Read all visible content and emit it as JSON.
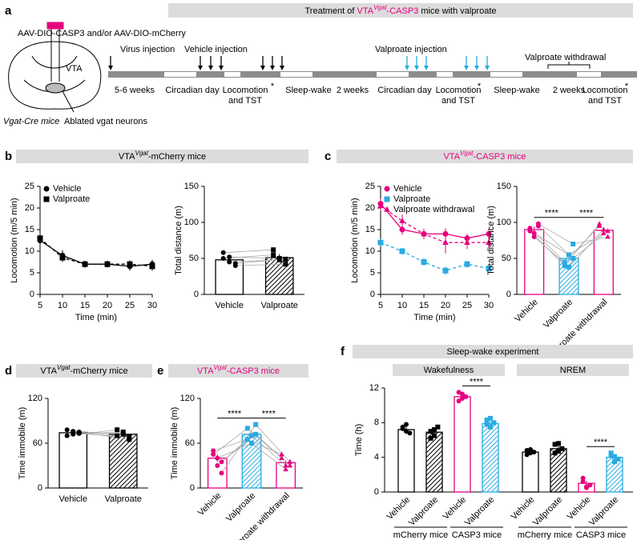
{
  "panel_a": {
    "label": "a",
    "title": {
      "lead": "Treatment of ",
      "prefix": "VTA",
      "sup": "Vgat",
      "suffix": "-CASP3",
      "tail": " mice with valproate",
      "color": "#e6007e"
    },
    "virus": "AAV-DIO-CASP3 and/or AAV-DIO-mCherry",
    "region": "VTA",
    "mouse": "Vgat-Cre mice",
    "ablated": "Ablated vgat neurons",
    "injections": [
      "Virus injection",
      "Vehicle injection",
      "Valproate injection",
      "Valproate withdrawal"
    ],
    "timeline": [
      [
        "5-6 weeks"
      ],
      [
        "Circadian day"
      ],
      [
        "Locomotion",
        "and TST"
      ],
      [
        "Sleep-wake"
      ],
      [
        "2 weeks"
      ],
      [
        "Circadian day"
      ],
      [
        "Locomotion",
        "and TST"
      ],
      [
        "Sleep-wake"
      ],
      [
        "2 weeks"
      ],
      [
        "Locomotion",
        "and TST"
      ]
    ],
    "asterisk": "*"
  },
  "chart_data": [
    {
      "type": "line",
      "panel": "b",
      "title": {
        "prefix": "VTA",
        "sup": "Vgat",
        "suffix": "-mCherry mice"
      },
      "x": [
        5,
        10,
        15,
        20,
        25,
        30
      ],
      "xlim": [
        5,
        30
      ],
      "xticks": [
        5,
        10,
        15,
        20,
        25,
        30
      ],
      "xlabel": "Time (min)",
      "ylim": [
        0,
        25
      ],
      "yticks": [
        0,
        5,
        10,
        15,
        20,
        25
      ],
      "ylabel": "Locomotion (m/5 min)",
      "legend": "upper left",
      "series": [
        {
          "name": "Vehicle",
          "color": "#000000",
          "marker": "circle",
          "dashed": false,
          "values": [
            12.5,
            9,
            7,
            7,
            6.5,
            7
          ],
          "errors": [
            1,
            1.2,
            0.8,
            0.8,
            1,
            1
          ]
        },
        {
          "name": "Valproate",
          "color": "#000000",
          "marker": "square",
          "dashed": true,
          "values": [
            13,
            8.5,
            7,
            7,
            7,
            6.5
          ],
          "errors": [
            1,
            1,
            0.8,
            0.8,
            0.9,
            1
          ]
        }
      ]
    },
    {
      "type": "bar",
      "categories": [
        "Vehicle",
        "Valproate"
      ],
      "values": [
        48,
        51
      ],
      "errors": [
        5,
        5
      ],
      "points": [
        [
          58,
          45,
          40,
          50,
          52,
          43
        ],
        [
          62,
          48,
          42,
          55,
          50,
          49
        ]
      ],
      "colors": [
        "#000000",
        "#000000"
      ],
      "hatch": [
        false,
        true
      ],
      "markers": [
        "circle",
        "square"
      ],
      "paired": true,
      "rotate_labels": false,
      "ylim": [
        0,
        150
      ],
      "yticks": [
        0,
        50,
        100,
        150
      ],
      "ylabel": "Total distance (m)"
    },
    {
      "type": "line",
      "panel": "c",
      "title": {
        "prefix": "VTA",
        "sup": "Vgat",
        "suffix": "-CASP3 mice",
        "color": "#e6007e"
      },
      "x": [
        5,
        10,
        15,
        20,
        25,
        30
      ],
      "xlim": [
        5,
        30
      ],
      "xticks": [
        5,
        10,
        15,
        20,
        25,
        30
      ],
      "xlabel": "Time (min)",
      "ylim": [
        0,
        25
      ],
      "yticks": [
        0,
        5,
        10,
        15,
        20,
        25
      ],
      "ylabel": "Locomotion (m/5 min)",
      "legend": "upper left",
      "series": [
        {
          "name": "Vehicle",
          "color": "#e6007e",
          "marker": "circle",
          "dashed": false,
          "values": [
            21,
            15,
            14,
            14,
            13,
            14
          ],
          "errors": [
            1.2,
            1.2,
            1,
            1.3,
            1,
            1.2
          ]
        },
        {
          "name": "Valproate",
          "color": "#29abe2",
          "marker": "square",
          "dashed": true,
          "values": [
            12,
            10,
            7.5,
            5.5,
            7,
            6
          ],
          "errors": [
            0.8,
            0.8,
            0.9,
            1,
            0.8,
            0.6
          ]
        },
        {
          "name": "Valproate withdrawal",
          "color": "#e6007e",
          "marker": "triangle",
          "dashed": true,
          "values": [
            20.5,
            17,
            14,
            12,
            12,
            12
          ],
          "errors": [
            1.2,
            1.5,
            1.2,
            2.5,
            1.5,
            1.5
          ]
        }
      ]
    },
    {
      "type": "bar",
      "categories": [
        "Vehicle",
        "Valproate",
        "Valproate withdrawal"
      ],
      "values": [
        90,
        50,
        89
      ],
      "errors": [
        4,
        5,
        4
      ],
      "points": [
        [
          92,
          85,
          98,
          88,
          80,
          95
        ],
        [
          45,
          55,
          70,
          40,
          38,
          50
        ],
        [
          95,
          85,
          80,
          98,
          90,
          88
        ]
      ],
      "colors": [
        "#e6007e",
        "#29abe2",
        "#e6007e"
      ],
      "hatch": [
        false,
        true,
        false
      ],
      "markers": [
        "circle",
        "square",
        "triangle"
      ],
      "paired": true,
      "rotate_labels": true,
      "significance": [
        "****",
        "****"
      ],
      "ylim": [
        0,
        150
      ],
      "yticks": [
        0,
        50,
        100,
        150
      ],
      "ylabel": "Total distance (m)"
    },
    {
      "type": "bar",
      "panel": "d",
      "title": {
        "prefix": "VTA",
        "sup": "Vgat",
        "suffix": "-mCherry mice"
      },
      "categories": [
        "Vehicle",
        "Valproate"
      ],
      "values": [
        74,
        72
      ],
      "errors": [
        2,
        3
      ],
      "points": [
        [
          78,
          72,
          75,
          70,
          76,
          73
        ],
        [
          70,
          75,
          65,
          78,
          72,
          68
        ]
      ],
      "colors": [
        "#000000",
        "#000000"
      ],
      "hatch": [
        false,
        true
      ],
      "markers": [
        "circle",
        "square"
      ],
      "paired": true,
      "rotate_labels": false,
      "ylim": [
        0,
        120
      ],
      "yticks": [
        0,
        60,
        120
      ],
      "ylabel": "Time immobile (m)"
    },
    {
      "type": "bar",
      "panel": "e",
      "title": {
        "prefix": "VTA",
        "sup": "Vgat",
        "suffix": "-CASP3 mice",
        "color": "#e6007e"
      },
      "categories": [
        "Vehicle",
        "Valproate",
        "Valproate withdrawal"
      ],
      "values": [
        40,
        72,
        34
      ],
      "errors": [
        5,
        4,
        3
      ],
      "points": [
        [
          45,
          30,
          20,
          50,
          40,
          35
        ],
        [
          80,
          70,
          85,
          65,
          60,
          72
        ],
        [
          40,
          30,
          35,
          45,
          25,
          30
        ]
      ],
      "colors": [
        "#e6007e",
        "#29abe2",
        "#e6007e"
      ],
      "hatch": [
        false,
        true,
        false
      ],
      "markers": [
        "circle",
        "square",
        "triangle"
      ],
      "paired": true,
      "rotate_labels": true,
      "significance": [
        "****",
        "****"
      ],
      "ylim": [
        0,
        120
      ],
      "yticks": [
        0,
        60,
        120
      ],
      "ylabel": "Time immobile (m)"
    },
    {
      "type": "grouped_bar",
      "panel": "f",
      "title": "Sleep-wake experiment",
      "rotate_labels": true,
      "ylim": [
        0,
        12
      ],
      "yticks": [
        0,
        4,
        8,
        12
      ],
      "ylabel": "Time (h)",
      "groups": [
        {
          "name": "Wakefulness",
          "subgroups": [
            {
              "name": "mCherry mice",
              "label_color": "#000000",
              "categories": [
                "Vehicle",
                "Valproate"
              ],
              "values": [
                7.2,
                6.9
              ],
              "errors": [
                0.3,
                0.35
              ],
              "points": [
                [
                  7.5,
                  7,
                  6.8,
                  7.3,
                  7.8
                ],
                [
                  7,
                  6.5,
                  7.5,
                  6.2,
                  7.2
                ]
              ],
              "colors": [
                "#000000",
                "#000000"
              ],
              "hatch": [
                false,
                true
              ],
              "markers": [
                "circle",
                "square"
              ]
            },
            {
              "name": "CASP3 mice",
              "label_color": "#e6007e",
              "categories": [
                "Vehicle",
                "Valproate"
              ],
              "values": [
                11,
                7.9
              ],
              "errors": [
                0.3,
                0.3
              ],
              "points": [
                [
                  11.5,
                  10.8,
                  11,
                  10.5,
                  11.3
                ],
                [
                  8.3,
                  7.5,
                  8,
                  7.8,
                  8.5
                ]
              ],
              "colors": [
                "#e6007e",
                "#29abe2"
              ],
              "hatch": [
                false,
                true
              ],
              "markers": [
                "circle",
                "square"
              ],
              "significance": "****"
            }
          ]
        },
        {
          "name": "NREM",
          "subgroups": [
            {
              "name": "mCherry mice",
              "label_color": "#000000",
              "categories": [
                "Vehicle",
                "Valproate"
              ],
              "values": [
                4.6,
                5
              ],
              "errors": [
                0.2,
                0.3
              ],
              "points": [
                [
                  4.8,
                  4.5,
                  4.6,
                  4.3,
                  4.9
                ],
                [
                  5.5,
                  4.7,
                  5,
                  4.5,
                  5.6
                ]
              ],
              "colors": [
                "#000000",
                "#000000"
              ],
              "hatch": [
                false,
                true
              ],
              "markers": [
                "circle",
                "square"
              ]
            },
            {
              "name": "CASP3 mice",
              "label_color": "#e6007e",
              "categories": [
                "Vehicle",
                "Valproate"
              ],
              "values": [
                1,
                4
              ],
              "errors": [
                0.3,
                0.3
              ],
              "points": [
                [
                  1.2,
                  0.5,
                  0.8,
                  1.6,
                  0.6
                ],
                [
                  4.5,
                  3.5,
                  3.8,
                  4.2,
                  4.1
                ]
              ],
              "colors": [
                "#e6007e",
                "#29abe2"
              ],
              "hatch": [
                false,
                true
              ],
              "markers": [
                "circle",
                "square"
              ],
              "significance": "****"
            }
          ]
        }
      ]
    }
  ]
}
